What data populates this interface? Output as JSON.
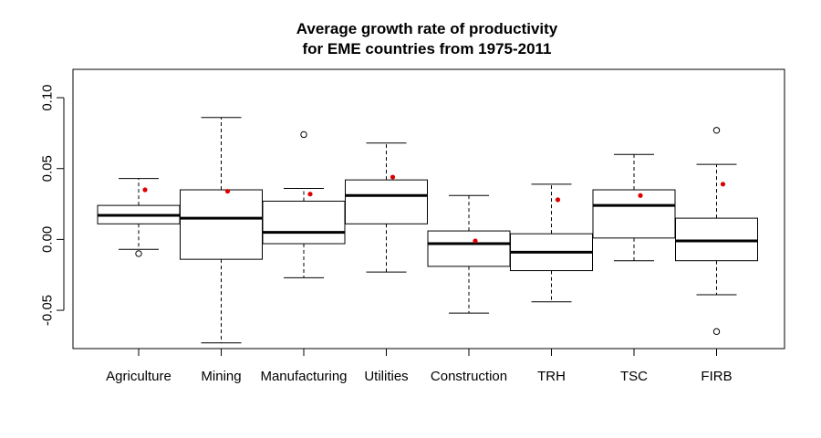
{
  "chart_data": {
    "type": "box",
    "title": [
      "Average growth rate of productivity",
      "for EME countries from 1975-2011"
    ],
    "xlabel": "",
    "ylabel": "",
    "ylim": [
      -0.077,
      0.12
    ],
    "yticks": [
      -0.05,
      0.0,
      0.05,
      0.1
    ],
    "ytick_labels": [
      "-0.05",
      "0.00",
      "0.05",
      "0.10"
    ],
    "categories": [
      "Agriculture",
      "Mining",
      "Manufacturing",
      "Utilities",
      "Construction",
      "TRH",
      "TSC",
      "FIRB"
    ],
    "boxes": [
      {
        "name": "Agriculture",
        "whisker_low": -0.007,
        "q1": 0.011,
        "median": 0.017,
        "q3": 0.024,
        "whisker_high": 0.043,
        "outliers": [
          -0.01
        ],
        "mean": 0.035
      },
      {
        "name": "Mining",
        "whisker_low": -0.073,
        "q1": -0.014,
        "median": 0.015,
        "q3": 0.035,
        "whisker_high": 0.086,
        "outliers": [],
        "mean": 0.034
      },
      {
        "name": "Manufacturing",
        "whisker_low": -0.027,
        "q1": -0.003,
        "median": 0.005,
        "q3": 0.027,
        "whisker_high": 0.036,
        "outliers": [
          0.074
        ],
        "mean": 0.032
      },
      {
        "name": "Utilities",
        "whisker_low": -0.023,
        "q1": 0.011,
        "median": 0.031,
        "q3": 0.042,
        "whisker_high": 0.068,
        "outliers": [],
        "mean": 0.044
      },
      {
        "name": "Construction",
        "whisker_low": -0.052,
        "q1": -0.019,
        "median": -0.003,
        "q3": 0.006,
        "whisker_high": 0.031,
        "outliers": [],
        "mean": -0.001
      },
      {
        "name": "TRH",
        "whisker_low": -0.044,
        "q1": -0.022,
        "median": -0.009,
        "q3": 0.004,
        "whisker_high": 0.039,
        "outliers": [],
        "mean": 0.028
      },
      {
        "name": "TSC",
        "whisker_low": -0.015,
        "q1": 0.001,
        "median": 0.024,
        "q3": 0.035,
        "whisker_high": 0.06,
        "outliers": [],
        "mean": 0.031
      },
      {
        "name": "FIRB",
        "whisker_low": -0.039,
        "q1": -0.015,
        "median": -0.001,
        "q3": 0.015,
        "whisker_high": 0.053,
        "outliers": [
          0.077,
          -0.065
        ],
        "mean": 0.039
      }
    ],
    "colors": {
      "mean_marker": "#dd0000",
      "box": "#000000",
      "background": "#ffffff"
    }
  }
}
